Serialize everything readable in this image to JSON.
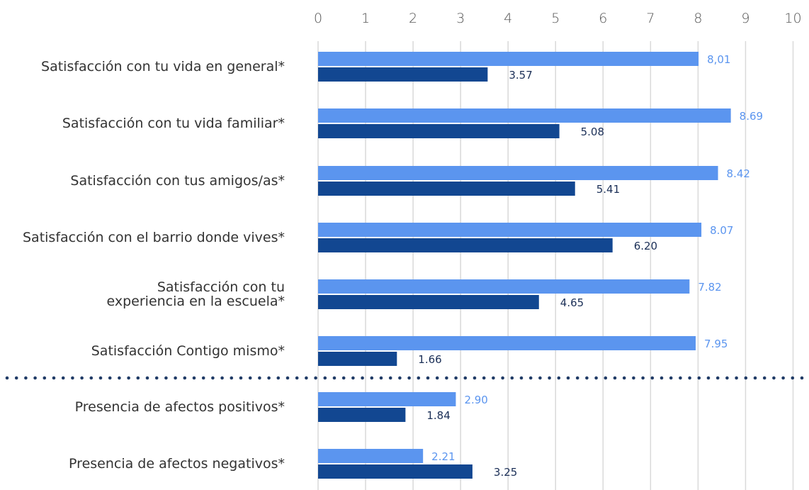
{
  "chart_data": {
    "type": "bar",
    "orientation": "horizontal",
    "xlim": [
      0,
      10
    ],
    "ticks": [
      "0",
      "1",
      "2",
      "3",
      "4",
      "5",
      "6",
      "7",
      "8",
      "9",
      "10"
    ],
    "grid": "vertical",
    "categories": [
      [
        "Satisfacción con tu vida en general*"
      ],
      [
        "Satisfacción con tu vida familiar*"
      ],
      [
        "Satisfacción con tus amigos/as*"
      ],
      [
        "Satisfacción con el barrio donde vives*"
      ],
      [
        "Satisfacción con tu",
        "experiencia en la escuela*"
      ],
      [
        "Satisfacción Contigo mismo*"
      ],
      [
        "Presencia de afectos positivos*"
      ],
      [
        "Presencia de afectos negativos*"
      ]
    ],
    "series": [
      {
        "color": "#5b95ef",
        "values": [
          8.01,
          8.69,
          8.42,
          8.07,
          7.82,
          7.95,
          2.9,
          2.21
        ],
        "labels": [
          "8,01",
          "8.69",
          "8.42",
          "8.07",
          "7.82",
          "7.95",
          "2.90",
          "2.21"
        ]
      },
      {
        "color": "#124791",
        "values": [
          3.57,
          5.08,
          5.41,
          6.2,
          4.65,
          1.66,
          1.84,
          3.25
        ],
        "labels": [
          "3.57",
          "5.08",
          "5.41",
          "6.20",
          "4.65",
          "1.66",
          "1.84",
          "3.25"
        ]
      }
    ],
    "separator_after_category": 5
  }
}
